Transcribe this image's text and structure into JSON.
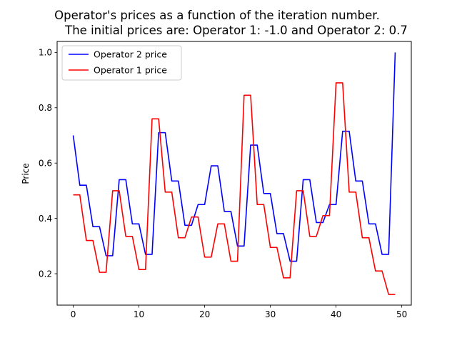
{
  "chart_data": {
    "type": "line",
    "title": "Operator's prices as a function of the iteration number.",
    "subtitle": "The initial prices are: Operator 1: -1.0 and Operator 2: 0.7",
    "xlabel": "",
    "ylabel": "Price",
    "xlim": [
      -2.45,
      51.45
    ],
    "ylim": [
      0.0864,
      1.0397
    ],
    "xticks": [
      0,
      10,
      20,
      30,
      40,
      50
    ],
    "yticks": [
      0.2,
      0.4,
      0.6,
      0.8,
      1.0
    ],
    "ytick_labels": [
      "0.2",
      "0.4",
      "0.6",
      "0.8",
      "1.0"
    ],
    "grid": false,
    "legend_position": "upper-left",
    "series": [
      {
        "name": "Operator 2 price",
        "color": "#0000ff",
        "x": [
          0,
          1,
          2,
          3,
          4,
          5,
          6,
          7,
          8,
          9,
          10,
          11,
          12,
          13,
          14,
          15,
          16,
          17,
          18,
          19,
          20,
          21,
          22,
          23,
          24,
          25,
          26,
          27,
          28,
          29,
          30,
          31,
          32,
          33,
          34,
          35,
          36,
          37,
          38,
          39,
          40,
          41,
          42,
          43,
          44,
          45,
          46,
          47,
          48,
          49
        ],
        "values": [
          0.7,
          0.52,
          0.52,
          0.37,
          0.37,
          0.265,
          0.265,
          0.54,
          0.54,
          0.38,
          0.38,
          0.27,
          0.27,
          0.71,
          0.71,
          0.535,
          0.535,
          0.375,
          0.375,
          0.45,
          0.45,
          0.59,
          0.59,
          0.425,
          0.425,
          0.3,
          0.3,
          0.665,
          0.665,
          0.49,
          0.49,
          0.345,
          0.345,
          0.245,
          0.245,
          0.54,
          0.54,
          0.385,
          0.385,
          0.45,
          0.45,
          0.715,
          0.715,
          0.535,
          0.535,
          0.38,
          0.38,
          0.27,
          0.27,
          1.0
        ]
      },
      {
        "name": "Operator 1 price",
        "color": "#ff0000",
        "x": [
          0,
          1,
          2,
          3,
          4,
          5,
          6,
          7,
          8,
          9,
          10,
          11,
          12,
          13,
          14,
          15,
          16,
          17,
          18,
          19,
          20,
          21,
          22,
          23,
          24,
          25,
          26,
          27,
          28,
          29,
          30,
          31,
          32,
          33,
          34,
          35,
          36,
          37,
          38,
          39,
          40,
          41,
          42,
          43,
          44,
          45,
          46,
          47,
          48,
          49
        ],
        "values": [
          0.485,
          0.485,
          0.32,
          0.32,
          0.205,
          0.205,
          0.5,
          0.5,
          0.335,
          0.335,
          0.215,
          0.215,
          0.76,
          0.76,
          0.495,
          0.495,
          0.33,
          0.33,
          0.405,
          0.405,
          0.26,
          0.26,
          0.38,
          0.38,
          0.245,
          0.245,
          0.845,
          0.845,
          0.45,
          0.45,
          0.295,
          0.295,
          0.185,
          0.185,
          0.5,
          0.5,
          0.335,
          0.335,
          0.41,
          0.41,
          0.89,
          0.89,
          0.495,
          0.495,
          0.33,
          0.33,
          0.21,
          0.21,
          0.125,
          0.125
        ]
      }
    ]
  }
}
